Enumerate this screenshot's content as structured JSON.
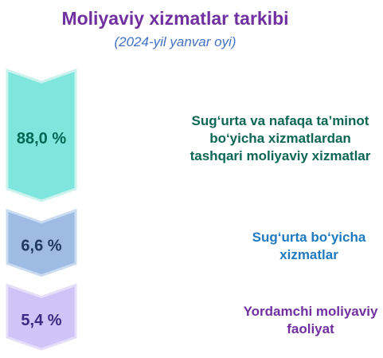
{
  "title": "Moliyaviy xizmatlar tarkibi",
  "subtitle": "(2024-yil yanvar oyi)",
  "chart_data": {
    "type": "bar",
    "unit": "%",
    "categories": [
      "Sug‘urta va nafaqa ta’minot\nbo‘yicha xizmatlardan\ntashqari moliyaviy xizmatlar",
      "Sug‘urta bo‘yicha\nxizmatlar",
      "Yordamchi moliyaviy\nfaoliyat"
    ],
    "values": [
      88.0,
      6.6,
      5.4
    ],
    "value_labels": [
      "88,0 %",
      "6,6 %",
      "5,4 %"
    ],
    "colors": {
      "fill": [
        "#7ee6dc",
        "#9dbbe3",
        "#cfc4f7"
      ],
      "stroke": [
        "#c8f3ee",
        "#c9dbf1",
        "#e4defb"
      ],
      "value_text": [
        "#006655",
        "#1f3864",
        "#3a2a80"
      ],
      "label_text": [
        "#0b6655",
        "#1f7ac0",
        "#7030a0"
      ]
    }
  }
}
